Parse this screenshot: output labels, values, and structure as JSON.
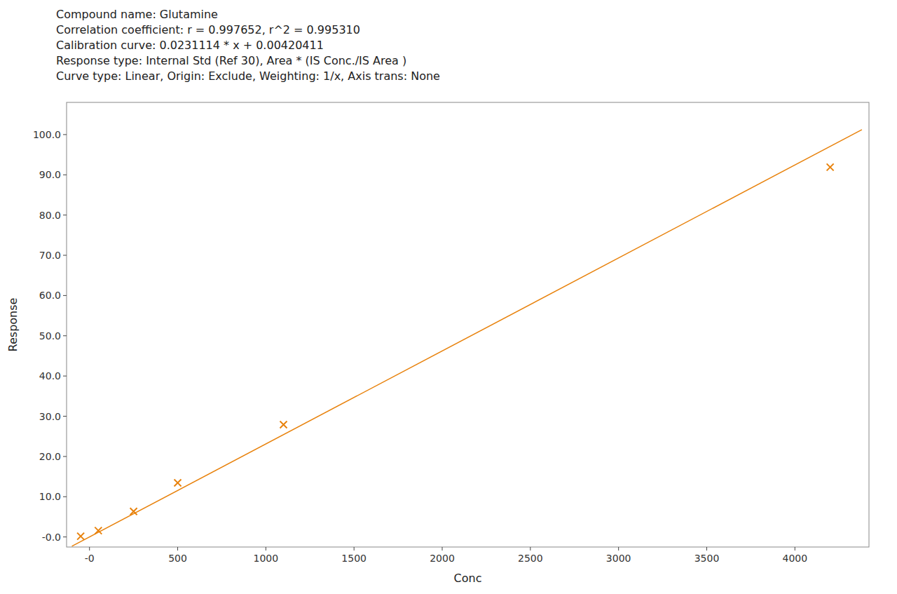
{
  "chart_data": {
    "type": "scatter",
    "title": [
      "Compound name: Glutamine",
      "Correlation coefficient: r = 0.997652, r^2 = 0.995310",
      "Calibration curve: 0.0231114 * x + 0.00420411",
      "Response type: Internal Std (Ref 30), Area * (IS Conc./IS Area )",
      "Curve type: Linear, Origin: Exclude, Weighting: 1/x, Axis trans: None"
    ],
    "x_label": "Conc",
    "y_label": "Response",
    "xlim": [
      -130,
      4420
    ],
    "ylim": [
      -2.5,
      108
    ],
    "xticks": [
      {
        "value": 0,
        "label": "-0"
      },
      500,
      1000,
      1500,
      2000,
      2500,
      3000,
      3500,
      4000
    ],
    "yticks": [
      {
        "value": 0,
        "label": "-0.0"
      },
      {
        "value": 10,
        "label": "10.0"
      },
      {
        "value": 20,
        "label": "20.0"
      },
      {
        "value": 30,
        "label": "30.0"
      },
      {
        "value": 40,
        "label": "40.0"
      },
      {
        "value": 50,
        "label": "50.0"
      },
      {
        "value": 60,
        "label": "60.0"
      },
      {
        "value": 70,
        "label": "70.0"
      },
      {
        "value": 80,
        "label": "80.0"
      },
      {
        "value": 90,
        "label": "90.0"
      },
      {
        "value": 100,
        "label": "100.0"
      }
    ],
    "grid": false,
    "series": [
      {
        "type": "line",
        "color": "#E8820C",
        "line_style": "solid",
        "x": [
          -100,
          4380
        ],
        "values": [
          -2.30693589,
          101.23213611
        ]
      },
      {
        "type": "scatter",
        "color": "#E8820C",
        "marker": "x",
        "x": [
          -50,
          50,
          250,
          500,
          1100,
          4200
        ],
        "values": [
          0.18,
          1.58,
          6.35,
          13.45,
          27.9,
          91.9
        ]
      }
    ]
  }
}
